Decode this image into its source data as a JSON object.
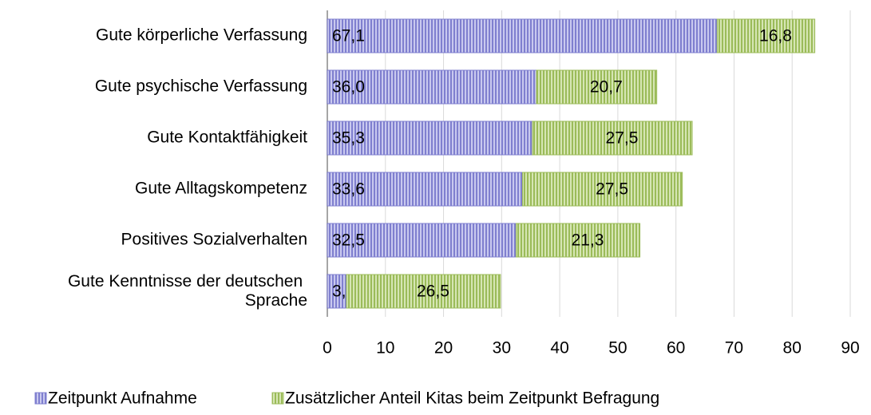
{
  "chart_data": {
    "type": "stacked_barh",
    "categories": [
      "Gute körperliche Verfassung",
      "Gute psychische Verfassung",
      "Gute Kontaktfähigkeit",
      "Gute Alltagskompetenz",
      "Positives Sozialverhalten",
      "Gute Kenntnisse der deutschen Sprache"
    ],
    "series": [
      {
        "name": "Zeitpunkt Aufnahme",
        "color": "#7f7fcf",
        "values": [
          67.1,
          36.0,
          35.3,
          33.6,
          32.5,
          3.3
        ],
        "value_labels": [
          "67,1",
          "36,0",
          "35,3",
          "33,6",
          "32,5",
          "3,3"
        ]
      },
      {
        "name": "Zusätzlicher Anteil Kitas beim Zeitpunkt Befragung",
        "color": "#9bbb59",
        "values": [
          16.8,
          20.7,
          27.5,
          27.5,
          21.3,
          26.5
        ],
        "value_labels": [
          "16,8",
          "20,7",
          "27,5",
          "27,5",
          "21,3",
          "26,5"
        ]
      }
    ],
    "xlim": [
      0,
      90
    ],
    "xticks": [
      0,
      10,
      20,
      30,
      40,
      50,
      60,
      70,
      80,
      90
    ],
    "grid": true
  }
}
